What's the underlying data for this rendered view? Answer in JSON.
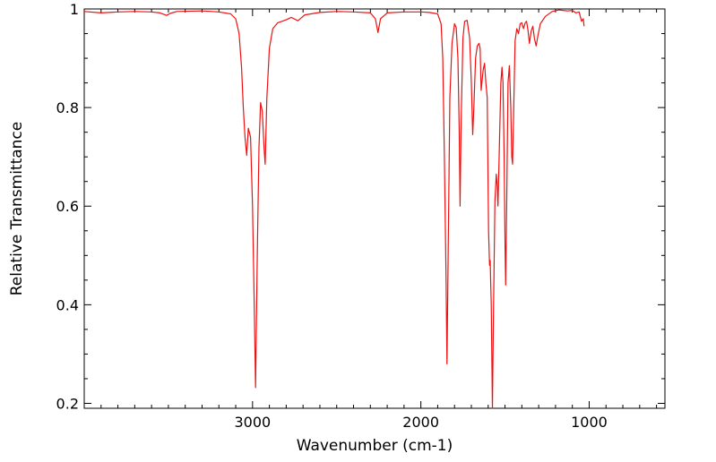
{
  "chart_data": {
    "type": "line",
    "title": "",
    "xlabel": "Wavenumber (cm-1)",
    "ylabel": "Relative Transmittance",
    "xlim": [
      4000,
      550
    ],
    "ylim": [
      0.19,
      1.0
    ],
    "x_reversed": true,
    "grid": false,
    "legend": "none",
    "x_ticks": [
      {
        "value": 3000,
        "label": "3000"
      },
      {
        "value": 2000,
        "label": "2000"
      },
      {
        "value": 1000,
        "label": "1000"
      }
    ],
    "y_ticks": [
      {
        "value": 0.2,
        "label": "0.2"
      },
      {
        "value": 0.4,
        "label": "0.4"
      },
      {
        "value": 0.6,
        "label": "0.6"
      },
      {
        "value": 0.8,
        "label": "0.8"
      },
      {
        "value": 1.0,
        "label": "1"
      }
    ],
    "series": [
      {
        "color": "#ee1111",
        "points": [
          [
            4000,
            0.995
          ],
          [
            3900,
            0.992
          ],
          [
            3800,
            0.994
          ],
          [
            3700,
            0.995
          ],
          [
            3600,
            0.994
          ],
          [
            3550,
            0.992
          ],
          [
            3510,
            0.987
          ],
          [
            3490,
            0.991
          ],
          [
            3450,
            0.995
          ],
          [
            3300,
            0.996
          ],
          [
            3200,
            0.994
          ],
          [
            3130,
            0.99
          ],
          [
            3100,
            0.98
          ],
          [
            3080,
            0.95
          ],
          [
            3065,
            0.88
          ],
          [
            3055,
            0.8
          ],
          [
            3045,
            0.74
          ],
          [
            3035,
            0.703
          ],
          [
            3025,
            0.758
          ],
          [
            3012,
            0.74
          ],
          [
            3000,
            0.6
          ],
          [
            2990,
            0.4
          ],
          [
            2982,
            0.232
          ],
          [
            2972,
            0.5
          ],
          [
            2962,
            0.72
          ],
          [
            2952,
            0.81
          ],
          [
            2942,
            0.793
          ],
          [
            2932,
            0.72
          ],
          [
            2925,
            0.685
          ],
          [
            2915,
            0.82
          ],
          [
            2900,
            0.92
          ],
          [
            2880,
            0.96
          ],
          [
            2850,
            0.972
          ],
          [
            2800,
            0.978
          ],
          [
            2770,
            0.983
          ],
          [
            2730,
            0.976
          ],
          [
            2690,
            0.988
          ],
          [
            2600,
            0.993
          ],
          [
            2500,
            0.995
          ],
          [
            2400,
            0.994
          ],
          [
            2300,
            0.992
          ],
          [
            2270,
            0.98
          ],
          [
            2255,
            0.952
          ],
          [
            2240,
            0.98
          ],
          [
            2200,
            0.992
          ],
          [
            2100,
            0.994
          ],
          [
            2000,
            0.994
          ],
          [
            1950,
            0.993
          ],
          [
            1900,
            0.99
          ],
          [
            1880,
            0.97
          ],
          [
            1870,
            0.9
          ],
          [
            1860,
            0.7
          ],
          [
            1850,
            0.45
          ],
          [
            1845,
            0.28
          ],
          [
            1838,
            0.5
          ],
          [
            1828,
            0.82
          ],
          [
            1815,
            0.93
          ],
          [
            1800,
            0.97
          ],
          [
            1790,
            0.962
          ],
          [
            1780,
            0.9
          ],
          [
            1772,
            0.75
          ],
          [
            1767,
            0.6
          ],
          [
            1760,
            0.78
          ],
          [
            1750,
            0.94
          ],
          [
            1740,
            0.975
          ],
          [
            1725,
            0.977
          ],
          [
            1710,
            0.94
          ],
          [
            1700,
            0.85
          ],
          [
            1692,
            0.745
          ],
          [
            1685,
            0.8
          ],
          [
            1675,
            0.9
          ],
          [
            1665,
            0.925
          ],
          [
            1655,
            0.93
          ],
          [
            1648,
            0.92
          ],
          [
            1642,
            0.835
          ],
          [
            1636,
            0.855
          ],
          [
            1630,
            0.875
          ],
          [
            1622,
            0.89
          ],
          [
            1614,
            0.85
          ],
          [
            1606,
            0.82
          ],
          [
            1598,
            0.55
          ],
          [
            1592,
            0.48
          ],
          [
            1588,
            0.49
          ],
          [
            1582,
            0.4
          ],
          [
            1575,
            0.19
          ],
          [
            1568,
            0.4
          ],
          [
            1560,
            0.61
          ],
          [
            1552,
            0.665
          ],
          [
            1546,
            0.64
          ],
          [
            1542,
            0.6
          ],
          [
            1535,
            0.7
          ],
          [
            1525,
            0.85
          ],
          [
            1518,
            0.882
          ],
          [
            1512,
            0.85
          ],
          [
            1505,
            0.7
          ],
          [
            1500,
            0.52
          ],
          [
            1496,
            0.44
          ],
          [
            1490,
            0.6
          ],
          [
            1482,
            0.85
          ],
          [
            1474,
            0.885
          ],
          [
            1466,
            0.8
          ],
          [
            1460,
            0.7
          ],
          [
            1455,
            0.685
          ],
          [
            1448,
            0.8
          ],
          [
            1440,
            0.935
          ],
          [
            1430,
            0.96
          ],
          [
            1420,
            0.95
          ],
          [
            1410,
            0.97
          ],
          [
            1400,
            0.972
          ],
          [
            1390,
            0.96
          ],
          [
            1380,
            0.972
          ],
          [
            1372,
            0.975
          ],
          [
            1363,
            0.955
          ],
          [
            1355,
            0.93
          ],
          [
            1345,
            0.955
          ],
          [
            1335,
            0.965
          ],
          [
            1325,
            0.94
          ],
          [
            1315,
            0.925
          ],
          [
            1305,
            0.945
          ],
          [
            1290,
            0.97
          ],
          [
            1260,
            0.985
          ],
          [
            1220,
            0.995
          ],
          [
            1180,
            0.998
          ],
          [
            1130,
            0.996
          ],
          [
            1100,
            0.997
          ],
          [
            1080,
            0.992
          ],
          [
            1060,
            0.994
          ],
          [
            1045,
            0.975
          ],
          [
            1035,
            0.98
          ],
          [
            1030,
            0.965
          ]
        ]
      }
    ]
  }
}
